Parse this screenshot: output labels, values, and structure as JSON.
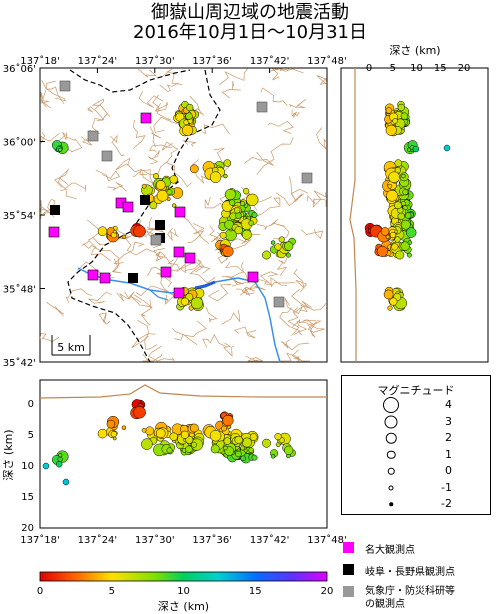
{
  "title": {
    "line1": "御嶽山周辺域の地震活動",
    "line2": "2016年10月1日〜10月31日"
  },
  "map": {
    "lon_ticks": [
      "137˚18'",
      "137˚24'",
      "137˚30'",
      "137˚36'",
      "137˚42'",
      "137˚48'"
    ],
    "lat_ticks": [
      "36˚06'",
      "36˚00'",
      "35˚54'",
      "35˚48'",
      "35˚42'"
    ],
    "scale_label": "5 km"
  },
  "depth_profile_right": {
    "axis_label": "深さ (km)",
    "ticks": [
      "0",
      "5",
      "10",
      "15",
      "20"
    ]
  },
  "depth_profile_bottom": {
    "axis_label": "深さ (km)",
    "ticks": [
      "0",
      "5",
      "10",
      "15",
      "20"
    ],
    "x_ticks": [
      "137˚18'",
      "137˚24'",
      "137˚30'",
      "137˚36'",
      "137˚42'",
      "137˚48'"
    ]
  },
  "magnitude_legend": {
    "title": "マグニチュード",
    "items": [
      "4",
      "3",
      "2",
      "1",
      "0",
      "-1",
      "-2"
    ]
  },
  "stations": [
    {
      "label": "名大観測点",
      "color": "#ff00ff"
    },
    {
      "label": "岐阜・長野県観測点",
      "color": "#000000"
    },
    {
      "label": "気象庁・防災科研等",
      "label2": "の観測点",
      "color": "#999999"
    }
  ],
  "colorbar": {
    "title": "深さ (km)",
    "ticks": [
      "0",
      "5",
      "10",
      "15",
      "20"
    ]
  },
  "colors": {
    "river": "#2288ee",
    "topo": "#b07a40",
    "border": "#000000"
  }
}
